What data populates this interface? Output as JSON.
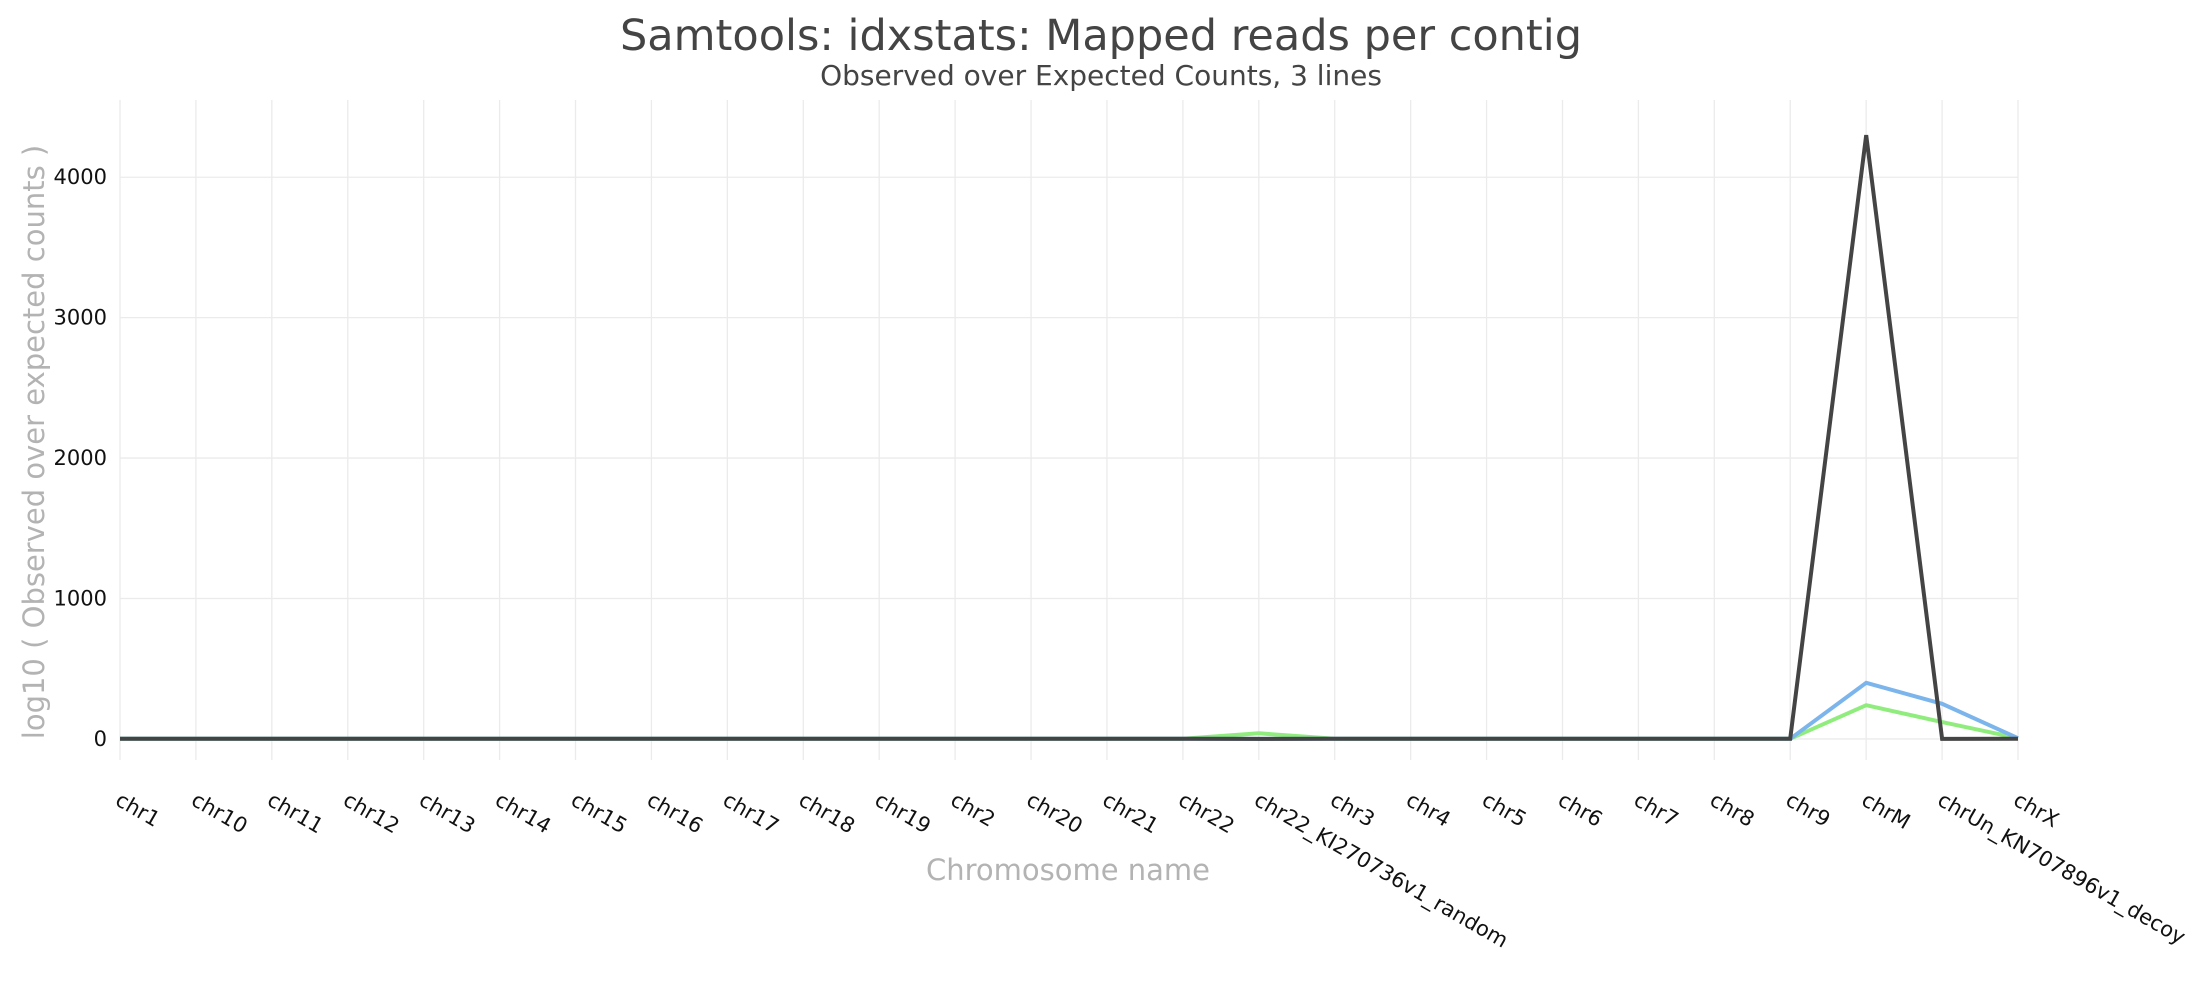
{
  "chart_data": {
    "type": "line",
    "title": "Samtools: idxstats: Mapped reads per contig",
    "subtitle": "Observed over Expected Counts, 3 lines",
    "xlabel": "Chromosome name",
    "ylabel": "log10 ( Observed over expected counts )",
    "ylim": [
      -150,
      4550
    ],
    "y_ticks": [
      0,
      1000,
      2000,
      3000,
      4000
    ],
    "grid": true,
    "legend": "none",
    "categories": [
      "chr1",
      "chr10",
      "chr11",
      "chr12",
      "chr13",
      "chr14",
      "chr15",
      "chr16",
      "chr17",
      "chr18",
      "chr19",
      "chr2",
      "chr20",
      "chr21",
      "chr22",
      "chr22_KI270736v1_random",
      "chr3",
      "chr4",
      "chr5",
      "chr6",
      "chr7",
      "chr8",
      "chr9",
      "chrM",
      "chrUn_KN707896v1_decoy",
      "chrX"
    ],
    "series": [
      {
        "color": "#444444",
        "values": [
          1,
          1,
          1,
          1,
          1,
          1,
          1,
          1,
          1,
          1,
          1,
          1,
          1,
          1,
          1,
          0,
          1,
          1,
          1,
          1,
          1,
          1,
          1,
          4300,
          0,
          1
        ]
      },
      {
        "color": "#7cb5ec",
        "values": [
          1,
          1,
          1,
          1,
          1,
          1,
          1,
          1,
          1,
          1,
          1,
          1,
          1,
          1,
          1,
          0,
          1,
          1,
          1,
          1,
          1,
          1,
          1,
          400,
          250,
          5
        ]
      },
      {
        "color": "#90ed7d",
        "values": [
          1,
          1,
          1,
          1,
          1,
          1,
          1,
          1,
          1,
          1,
          1,
          1,
          1,
          1,
          1,
          40,
          1,
          1,
          1,
          1,
          1,
          1,
          1,
          240,
          120,
          5
        ]
      }
    ]
  }
}
